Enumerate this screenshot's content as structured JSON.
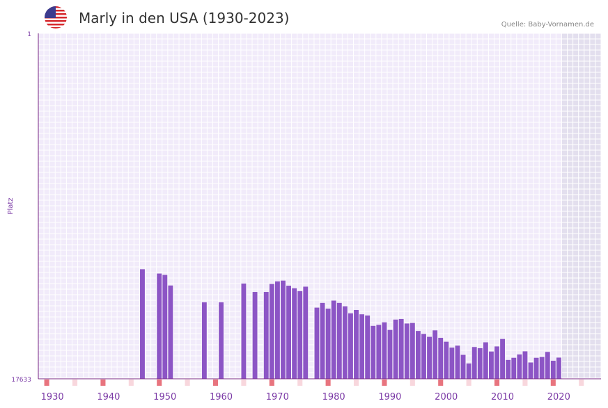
{
  "header": {
    "title": "Marly in den USA (1930-2023)",
    "source": "Quelle: Baby-Vornamen.de",
    "flag_icon": "us-flag-icon"
  },
  "colors": {
    "bar": "#8c55c5",
    "plot_bg": "#f1ebfa",
    "grid": "#ffffff",
    "future_bg": "#e3dfee",
    "axis": "#7a2a86",
    "label": "#7b3aa6",
    "decade_marker": "#e8747e",
    "five_marker": "#f8d7dd"
  },
  "chart_data": {
    "type": "bar",
    "title": "Marly in den USA (1930-2023)",
    "xlabel": "",
    "ylabel": "Platz",
    "y_axis_inverted": true,
    "ylim": [
      1,
      17633
    ],
    "y_tick_labels": [
      "1",
      "17633"
    ],
    "x_tick_labels": [
      "1930",
      "1940",
      "1950",
      "1960",
      "1970",
      "1980",
      "1990",
      "2000",
      "2010",
      "2020"
    ],
    "xlim": [
      1929,
      2028
    ],
    "future_shaded_from": 2022,
    "years": [
      1947,
      1950,
      1951,
      1952,
      1958,
      1961,
      1965,
      1967,
      1969,
      1970,
      1971,
      1972,
      1973,
      1974,
      1975,
      1976,
      1978,
      1979,
      1980,
      1981,
      1982,
      1983,
      1984,
      1985,
      1986,
      1987,
      1988,
      1989,
      1990,
      1991,
      1992,
      1993,
      1994,
      1995,
      1996,
      1997,
      1998,
      1999,
      2000,
      2001,
      2002,
      2003,
      2004,
      2005,
      2006,
      2007,
      2008,
      2009,
      2010,
      2011,
      2012,
      2013,
      2014,
      2015,
      2016,
      2017,
      2018,
      2019,
      2020,
      2021
    ],
    "values": [
      12040,
      12260,
      12330,
      12870,
      13730,
      13730,
      12770,
      13200,
      13200,
      12790,
      12660,
      12620,
      12880,
      13010,
      13160,
      12930,
      14000,
      13760,
      14050,
      13640,
      13760,
      13930,
      14290,
      14120,
      14340,
      14400,
      14930,
      14880,
      14750,
      15140,
      14610,
      14580,
      14810,
      14780,
      15190,
      15340,
      15490,
      15160,
      15540,
      15740,
      16040,
      15940,
      16410,
      16850,
      16010,
      16070,
      15770,
      16240,
      15980,
      15600,
      16670,
      16560,
      16390,
      16230,
      16800,
      16560,
      16520,
      16260,
      16710,
      16550
    ]
  }
}
